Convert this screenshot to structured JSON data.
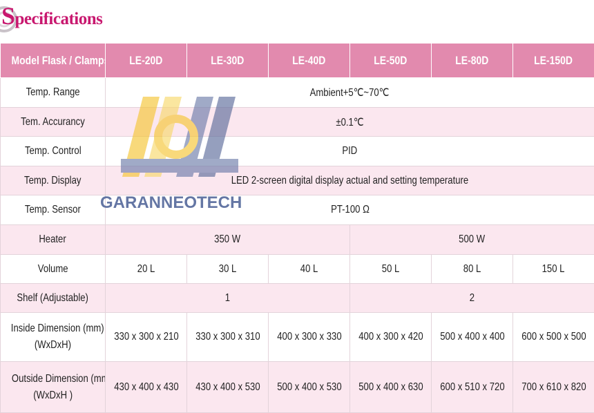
{
  "header": {
    "title": "Specifications",
    "watermark": "GARANNEOTECH"
  },
  "table": {
    "header": [
      "Model Flask / Clamps",
      "LE-20D",
      "LE-30D",
      "LE-40D",
      "LE-50D",
      "LE-80D",
      "LE-150D"
    ],
    "rows": [
      {
        "label": "Temp. Range",
        "cells": [
          "Ambient+5℃~70℃"
        ]
      },
      {
        "label": "Tem. Accurancy",
        "cells": [
          "±0.1℃"
        ]
      },
      {
        "label": "Temp. Control",
        "cells": [
          "PID"
        ]
      },
      {
        "label": "Temp. Display",
        "cells": [
          "LED 2-screen digital display actual and setting temperature"
        ]
      },
      {
        "label": "Temp. Sensor",
        "cells": [
          "PT-100 Ω"
        ]
      },
      {
        "label": "Heater",
        "cells": [
          "350 W",
          "500 W"
        ]
      },
      {
        "label": "Volume",
        "cells": [
          "20 L",
          "30 L",
          "40 L",
          "50 L",
          "80 L",
          "150 L"
        ]
      },
      {
        "label": "Shelf (Adjustable)",
        "cells": [
          "1",
          "2"
        ]
      },
      {
        "label": [
          "Inside Dimension (mm)",
          "(WxDxH)"
        ],
        "cells": [
          "330 x 300 x 210",
          "330 x 300 x 310",
          "400 x 300 x 330",
          "400 x 300 x 420",
          "500 x 400 x 400",
          "600 x 500 x 500"
        ]
      },
      {
        "label": [
          "Outside Dimension (mm)",
          "(WxDxH )"
        ],
        "cells": [
          "430 x 400 x 430",
          "430 x 400 x 530",
          "500 x 400 x 530",
          "500 x 400 x 630",
          "600 x 510 x 720",
          "700 x 610 x 820"
        ]
      }
    ]
  }
}
